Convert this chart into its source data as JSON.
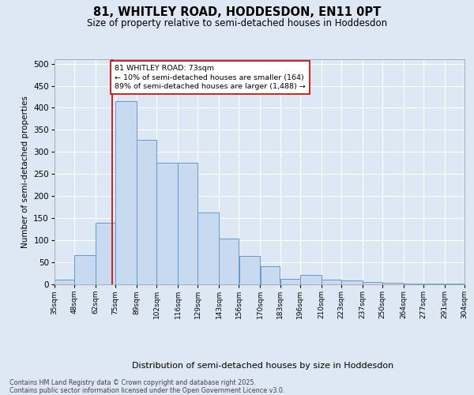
{
  "title": "81, WHITLEY ROAD, HODDESDON, EN11 0PT",
  "subtitle": "Size of property relative to semi-detached houses in Hoddesdon",
  "xlabel": "Distribution of semi-detached houses by size in Hoddesdon",
  "ylabel": "Number of semi-detached properties",
  "bar_color": "#c8daf0",
  "bar_edge_color": "#6699cc",
  "bg_color": "#dde8f4",
  "grid_color": "#ffffff",
  "red_color": "#cc0000",
  "annotation_text": "81 WHITLEY ROAD: 73sqm\n← 10% of semi-detached houses are smaller (164)\n89% of semi-detached houses are larger (1,488) →",
  "footer": "Contains HM Land Registry data © Crown copyright and database right 2025.\nContains public sector information licensed under the Open Government Licence v3.0.",
  "bins": [
    35,
    48,
    62,
    75,
    89,
    102,
    116,
    129,
    143,
    156,
    170,
    183,
    196,
    210,
    223,
    237,
    250,
    264,
    277,
    291,
    304
  ],
  "bar_heights": [
    11,
    67,
    140,
    415,
    328,
    275,
    275,
    163,
    103,
    65,
    41,
    13,
    22,
    10,
    9,
    6,
    3,
    2,
    1,
    1
  ],
  "property_size": 73,
  "ylim_max": 510,
  "yticks": [
    0,
    50,
    100,
    150,
    200,
    250,
    300,
    350,
    400,
    450,
    500
  ]
}
